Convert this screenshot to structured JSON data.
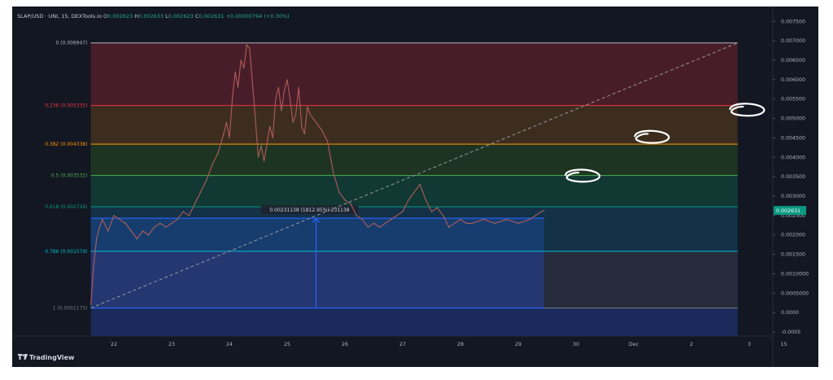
{
  "header": {
    "symbol": "SLAP/USD",
    "exchange": "UNI",
    "interval": "15",
    "source": "DEXTools.io",
    "o_label": "O",
    "o_value": "0.002623",
    "h_label": "H",
    "h_value": "0.002633",
    "l_label": "L",
    "l_value": "0.002623",
    "c_label": "C",
    "c_value": "0.002631",
    "change": "+0.00000794 (+0.30%)"
  },
  "brand": {
    "name": "TradingView"
  },
  "measure_label": "0.00231138 (1812.95%) 231138",
  "last_price_label": "0.002631",
  "chart_data": {
    "type": "line",
    "title": "",
    "x_ticks": [
      "22",
      "23",
      "24",
      "25",
      "26",
      "27",
      "28",
      "29",
      "30",
      "Dec",
      "2",
      "3",
      "15"
    ],
    "y_ticks": [
      "0.007500",
      "0.007000",
      "0.006500",
      "0.006000",
      "0.005500",
      "0.005000",
      "0.004500",
      "0.004000",
      "0.003500",
      "0.003000",
      "0.002500",
      "0.002000",
      "0.001500",
      "0.0010000",
      "0.0005000",
      "0.0000",
      "-0.0005"
    ],
    "y_values": [
      0.0075,
      0.007,
      0.0065,
      0.006,
      0.0055,
      0.005,
      0.0045,
      0.004,
      0.0035,
      0.003,
      0.0025,
      0.002,
      0.0015,
      0.001,
      0.0005,
      0.0,
      -0.0005
    ],
    "ylim": [
      -0.0005,
      0.0078
    ],
    "x_scale": "days",
    "fib_levels": [
      {
        "ratio": 0,
        "label": "0 (0.006947)",
        "value": 0.006947,
        "color": "#b2b5be",
        "fill": "#4a1e2a"
      },
      {
        "ratio": 0.236,
        "label": "0.236 (0.005335)",
        "value": 0.005335,
        "color": "#f23645",
        "fill": "#3f2e20"
      },
      {
        "ratio": 0.382,
        "label": "0.382 (0.004338)",
        "value": 0.004338,
        "color": "#ff9800",
        "fill": "#1f3624"
      },
      {
        "ratio": 0.5,
        "label": "0.5 (0.003532)",
        "value": 0.003532,
        "color": "#4caf50",
        "fill": "#113a35"
      },
      {
        "ratio": 0.618,
        "label": "0.618 (0.002726)",
        "value": 0.002726,
        "color": "#089981",
        "fill": "#13344a"
      },
      {
        "ratio": 0.786,
        "label": "0.786 (0.001579)",
        "value": 0.001579,
        "color": "#00bcd4",
        "fill": "#252c4c"
      },
      {
        "ratio": 1,
        "label": "1 (0.0001175)",
        "value": 0.0001175,
        "color": "#787b86",
        "fill": "#1c2b5c"
      }
    ],
    "series": [
      {
        "x": [
          21.6,
          21.65,
          21.7,
          21.75,
          21.8,
          21.9,
          22.0,
          22.1,
          22.2,
          22.3,
          22.4,
          22.5,
          22.6,
          22.7,
          22.8,
          22.9,
          23.0,
          23.1,
          23.2,
          23.3,
          23.4,
          23.5,
          23.6,
          23.7,
          23.8,
          23.9,
          23.95,
          24.0,
          24.05,
          24.1,
          24.15,
          24.2,
          24.25,
          24.3,
          24.35,
          24.4,
          24.45,
          24.5,
          24.55,
          24.6,
          24.7,
          24.75,
          24.8,
          24.85,
          24.9,
          24.95,
          25.0,
          25.05,
          25.1,
          25.15,
          25.2,
          25.25,
          25.3,
          25.35,
          25.4,
          25.5,
          25.6,
          25.7,
          25.8,
          25.9,
          26.0,
          26.1,
          26.2,
          26.3,
          26.4,
          26.5,
          26.6,
          26.8,
          27.0,
          27.1,
          27.2,
          27.3,
          27.4,
          27.5,
          27.6,
          27.7,
          27.8,
          27.9,
          28.0,
          28.1,
          28.2,
          28.4,
          28.6,
          28.8,
          29.0,
          29.2,
          29.3,
          29.4,
          29.45
        ],
        "values": [
          0.0002,
          0.0012,
          0.0019,
          0.0022,
          0.0024,
          0.0021,
          0.0025,
          0.0024,
          0.0023,
          0.0021,
          0.0019,
          0.0021,
          0.002,
          0.0022,
          0.0023,
          0.0022,
          0.0023,
          0.0024,
          0.0026,
          0.0025,
          0.0028,
          0.0031,
          0.0034,
          0.0038,
          0.0041,
          0.0046,
          0.0049,
          0.0045,
          0.0055,
          0.0062,
          0.0058,
          0.0065,
          0.0063,
          0.0069,
          0.0068,
          0.0059,
          0.005,
          0.004,
          0.0043,
          0.0039,
          0.0048,
          0.0045,
          0.0055,
          0.0058,
          0.0052,
          0.0057,
          0.006,
          0.0055,
          0.0049,
          0.0051,
          0.0058,
          0.0048,
          0.0046,
          0.0053,
          0.0051,
          0.0049,
          0.0047,
          0.0044,
          0.0036,
          0.0031,
          0.0029,
          0.0028,
          0.0025,
          0.0024,
          0.0022,
          0.0023,
          0.0022,
          0.0024,
          0.0026,
          0.0029,
          0.0031,
          0.0033,
          0.0029,
          0.0026,
          0.0027,
          0.0025,
          0.0022,
          0.0023,
          0.0024,
          0.0023,
          0.0023,
          0.0024,
          0.0023,
          0.0024,
          0.0023,
          0.0024,
          0.0025,
          0.0026,
          0.002631
        ]
      }
    ],
    "measure": {
      "x": 25.5,
      "y_from": 0.0001175,
      "y_to": 0.00243
    },
    "trend_line": {
      "x1": 21.6,
      "y1": 0.0001175,
      "x2": 32.8,
      "y2": 0.006947
    },
    "annotations": [
      {
        "x": 32.95,
        "y": 0.0052
      },
      {
        "x": 31.3,
        "y": 0.0045
      },
      {
        "x": 30.1,
        "y": 0.0035
      }
    ]
  }
}
